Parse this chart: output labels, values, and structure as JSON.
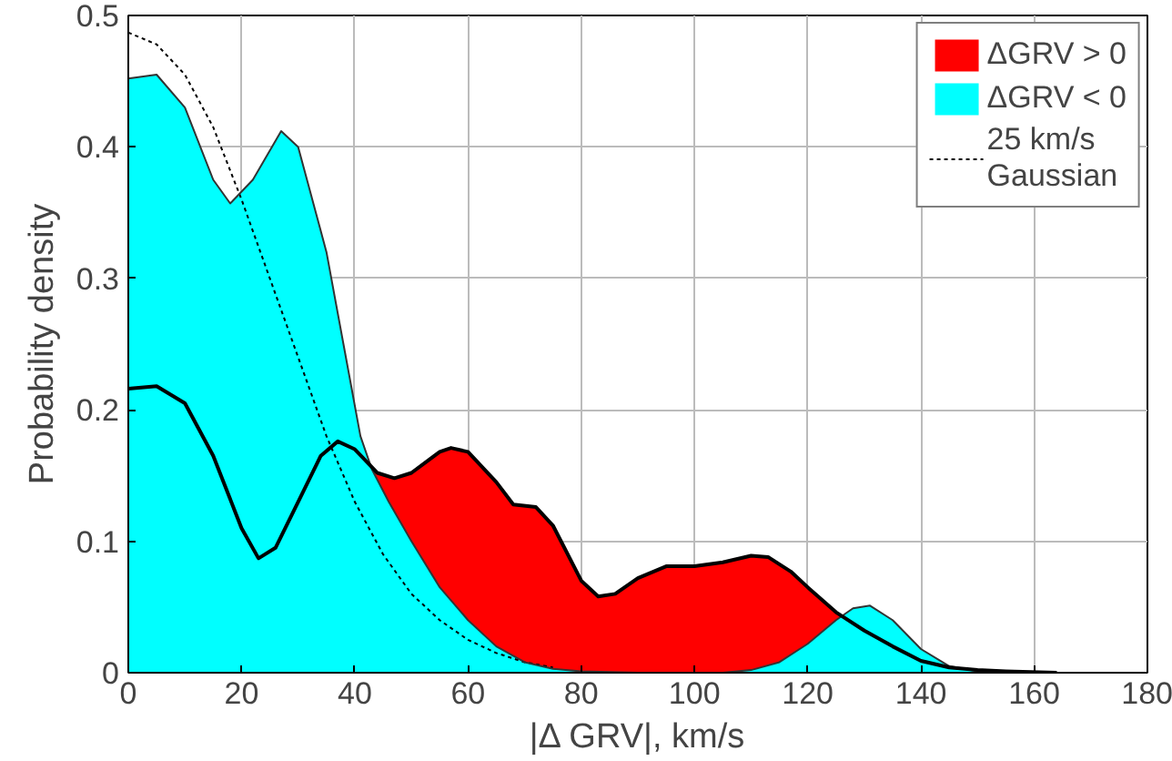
{
  "chart_data": {
    "type": "area",
    "xlabel": "|Δ GRV|, km/s",
    "ylabel": "Probability density",
    "xlim": [
      0,
      180
    ],
    "xticks": [
      0,
      20,
      40,
      60,
      80,
      100,
      120,
      140,
      160,
      180
    ],
    "ylim": [
      0,
      0.5
    ],
    "yticks": [
      0,
      0.1,
      0.2,
      0.3,
      0.4,
      0.5
    ],
    "grid": true,
    "legend": "top right",
    "series": [
      {
        "name": "ΔGRV > 0",
        "color": "#ff0000",
        "x": [
          0,
          5,
          10,
          15,
          20,
          23,
          26,
          30,
          34,
          37,
          40,
          44,
          47,
          50,
          55,
          57,
          60,
          65,
          68,
          72,
          75,
          80,
          83,
          86,
          90,
          95,
          100,
          105,
          110,
          113,
          117,
          120,
          125,
          130,
          135,
          140,
          145,
          150,
          155,
          164
        ],
        "values": [
          0.216,
          0.218,
          0.205,
          0.165,
          0.11,
          0.087,
          0.095,
          0.13,
          0.165,
          0.176,
          0.17,
          0.152,
          0.148,
          0.152,
          0.168,
          0.171,
          0.168,
          0.145,
          0.128,
          0.126,
          0.112,
          0.07,
          0.058,
          0.06,
          0.072,
          0.081,
          0.081,
          0.084,
          0.089,
          0.088,
          0.077,
          0.065,
          0.046,
          0.032,
          0.02,
          0.009,
          0.004,
          0.002,
          0.001,
          0
        ]
      },
      {
        "name": "ΔGRV < 0",
        "color": "#00ffff",
        "x": [
          0,
          5,
          10,
          15,
          18,
          22,
          27,
          30,
          35,
          38,
          41,
          43,
          46,
          50,
          55,
          60,
          65,
          70,
          75,
          80,
          90,
          105,
          110,
          115,
          120,
          125,
          128,
          131,
          135,
          140,
          145,
          150,
          155
        ],
        "values": [
          0.452,
          0.455,
          0.43,
          0.375,
          0.357,
          0.375,
          0.412,
          0.4,
          0.32,
          0.25,
          0.18,
          0.155,
          0.13,
          0.1,
          0.065,
          0.04,
          0.02,
          0.008,
          0.003,
          0.001,
          0,
          0,
          0.002,
          0.008,
          0.022,
          0.04,
          0.049,
          0.051,
          0.04,
          0.018,
          0.005,
          0.001,
          0
        ]
      },
      {
        "name": "25 km/s\nGaussian",
        "type": "line",
        "line_style": "dotted",
        "color": "#000000",
        "x": [
          0,
          5,
          10,
          15,
          20,
          25,
          30,
          35,
          40,
          45,
          50,
          55,
          60,
          65,
          70,
          75
        ],
        "values": [
          0.487,
          0.478,
          0.455,
          0.415,
          0.36,
          0.3,
          0.24,
          0.18,
          0.13,
          0.09,
          0.06,
          0.04,
          0.025,
          0.015,
          0.008,
          0.004
        ]
      }
    ]
  }
}
